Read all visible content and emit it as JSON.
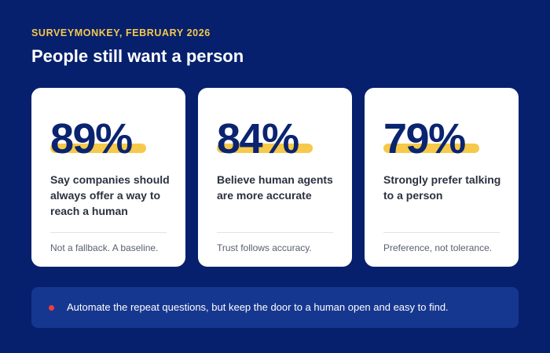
{
  "header": {
    "eyebrow": "SURVEYMONKEY, FEBRUARY 2026",
    "title": "People still want a person"
  },
  "cards": [
    {
      "stat": "89%",
      "description": "Say companies should always offer a way to reach a human",
      "note": "Not a fallback. A baseline."
    },
    {
      "stat": "84%",
      "description": "Believe human agents are more accurate",
      "note": "Trust follows accuracy."
    },
    {
      "stat": "79%",
      "description": "Strongly prefer talking to a person",
      "note": "Preference, not tolerance."
    }
  ],
  "footer": {
    "text": "Automate the repeat questions, but keep the door to a human open and easy to find."
  },
  "colors": {
    "background": "#06206e",
    "accent_yellow": "#f6c94a",
    "stat_navy": "#0a2470",
    "footer_panel": "#16378f",
    "bullet_red": "#ef3e3e"
  }
}
